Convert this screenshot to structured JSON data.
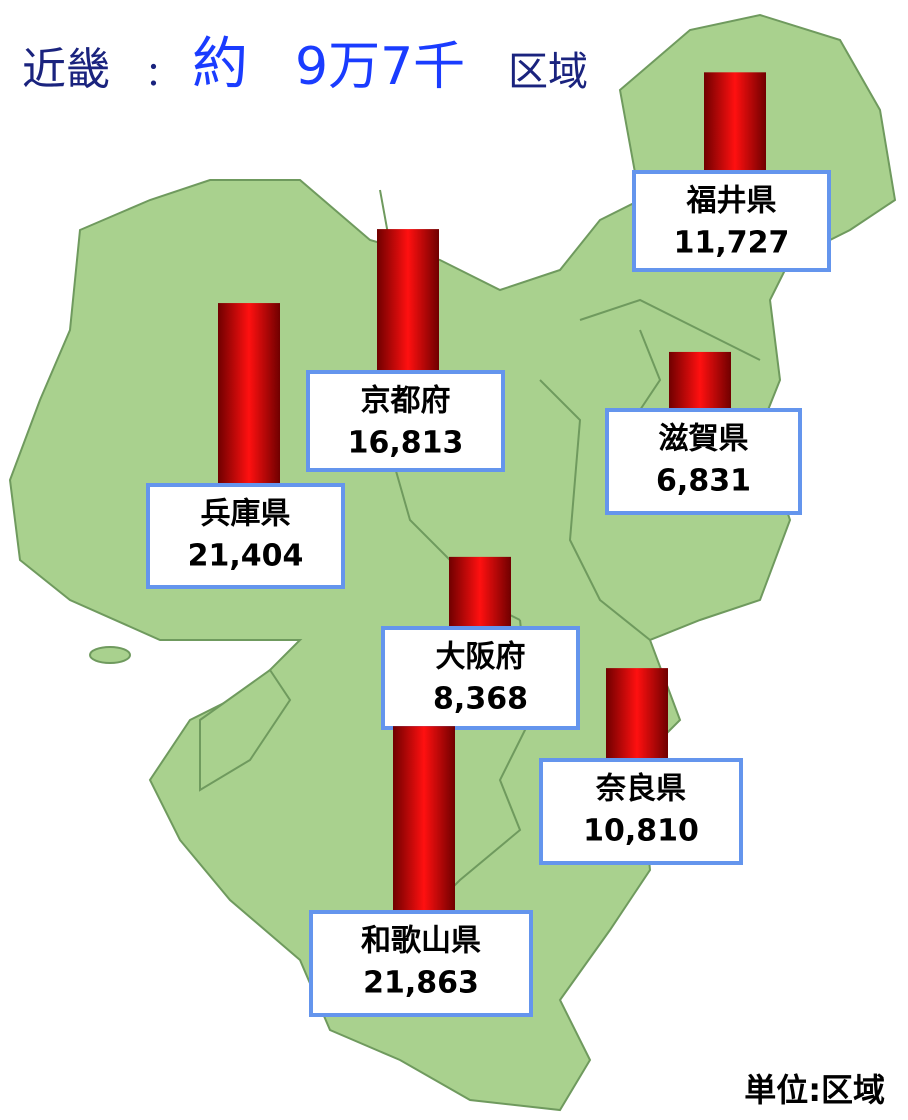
{
  "title": {
    "region": "近畿",
    "separator": "：",
    "prefix": "約",
    "amount": "9万7千",
    "unit": "区域"
  },
  "unit_note": "単位:区域",
  "chart_data": {
    "type": "map-bar",
    "categories": [
      "福井県",
      "京都府",
      "滋賀県",
      "兵庫県",
      "大阪府",
      "奈良県",
      "和歌山県"
    ],
    "values": [
      11727,
      16813,
      6831,
      21404,
      8368,
      10810,
      21863
    ],
    "value_labels": [
      "11,727",
      "16,813",
      "6,831",
      "21,404",
      "8,368",
      "10,810",
      "21,863"
    ],
    "color": "#e00000"
  }
}
